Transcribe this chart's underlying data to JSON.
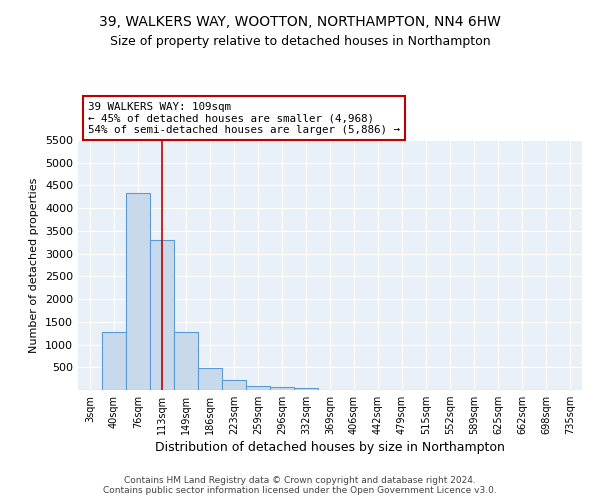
{
  "title": "39, WALKERS WAY, WOOTTON, NORTHAMPTON, NN4 6HW",
  "subtitle": "Size of property relative to detached houses in Northampton",
  "xlabel": "Distribution of detached houses by size in Northampton",
  "ylabel": "Number of detached properties",
  "categories": [
    "3sqm",
    "40sqm",
    "76sqm",
    "113sqm",
    "149sqm",
    "186sqm",
    "223sqm",
    "259sqm",
    "296sqm",
    "332sqm",
    "369sqm",
    "406sqm",
    "442sqm",
    "479sqm",
    "515sqm",
    "552sqm",
    "589sqm",
    "625sqm",
    "662sqm",
    "698sqm",
    "735sqm"
  ],
  "bar_values": [
    0,
    1270,
    4340,
    3300,
    1280,
    490,
    215,
    95,
    60,
    50,
    0,
    0,
    0,
    0,
    0,
    0,
    0,
    0,
    0,
    0,
    0
  ],
  "bar_color": "#c9d9ec",
  "bar_edge_color": "#5b9bd5",
  "vline_x": 3,
  "vline_color": "#c00000",
  "annotation_text": "39 WALKERS WAY: 109sqm\n← 45% of detached houses are smaller (4,968)\n54% of semi-detached houses are larger (5,886) →",
  "annotation_box_color": "#ffffff",
  "annotation_box_edge": "#c00000",
  "ylim": [
    0,
    5500
  ],
  "yticks": [
    0,
    500,
    1000,
    1500,
    2000,
    2500,
    3000,
    3500,
    4000,
    4500,
    5000,
    5500
  ],
  "bg_color": "#eaf0f8",
  "footer": "Contains HM Land Registry data © Crown copyright and database right 2024.\nContains public sector information licensed under the Open Government Licence v3.0.",
  "title_fontsize": 10,
  "subtitle_fontsize": 9
}
